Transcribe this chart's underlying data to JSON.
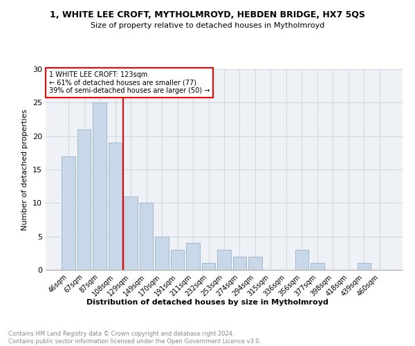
{
  "title": "1, WHITE LEE CROFT, MYTHOLMROYD, HEBDEN BRIDGE, HX7 5QS",
  "subtitle": "Size of property relative to detached houses in Mytholmroyd",
  "xlabel": "Distribution of detached houses by size in Mytholmroyd",
  "ylabel": "Number of detached properties",
  "categories": [
    "46sqm",
    "67sqm",
    "87sqm",
    "108sqm",
    "129sqm",
    "149sqm",
    "170sqm",
    "191sqm",
    "211sqm",
    "232sqm",
    "253sqm",
    "274sqm",
    "294sqm",
    "315sqm",
    "336sqm",
    "356sqm",
    "377sqm",
    "398sqm",
    "418sqm",
    "439sqm",
    "460sqm"
  ],
  "values": [
    17,
    21,
    25,
    19,
    11,
    10,
    5,
    3,
    4,
    1,
    3,
    2,
    2,
    0,
    0,
    3,
    1,
    0,
    0,
    1,
    0
  ],
  "bar_color": "#c8d8e8",
  "bar_edge_color": "#a0b8cc",
  "vline_color": "red",
  "vline_x": 3.5,
  "annotation_text": "1 WHITE LEE CROFT: 123sqm\n← 61% of detached houses are smaller (77)\n39% of semi-detached houses are larger (50) →",
  "annotation_box_color": "white",
  "annotation_box_edge_color": "red",
  "ylim": [
    0,
    30
  ],
  "yticks": [
    0,
    5,
    10,
    15,
    20,
    25,
    30
  ],
  "footer_text": "Contains HM Land Registry data © Crown copyright and database right 2024.\nContains public sector information licensed under the Open Government Licence v3.0.",
  "bg_color": "white",
  "plot_bg_color": "#eef2f6",
  "grid_color": "#d0d8e0"
}
